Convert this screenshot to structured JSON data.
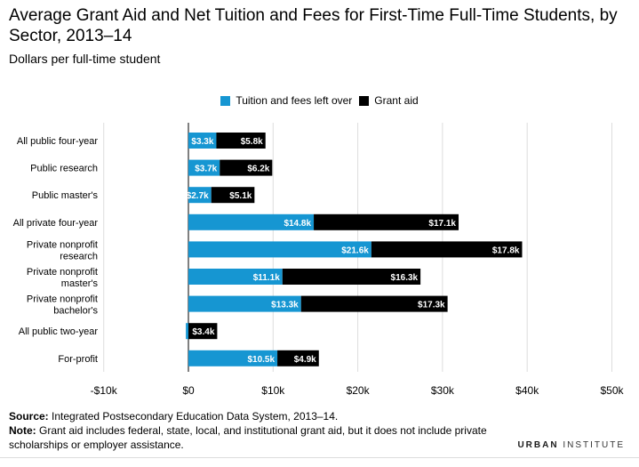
{
  "title": "Average Grant Aid and Net Tuition and Fees for First-Time Full-Time Students, by Sector, 2013–14",
  "subtitle": "Dollars per full-time student",
  "legend": {
    "tuition": "Tuition and fees left over",
    "grant": "Grant aid"
  },
  "colors": {
    "tuition": "#1696d2",
    "grant": "#000000",
    "grid": "#dddddd",
    "axis": "#000000"
  },
  "footer": {
    "source_label": "Source:",
    "source_text": " Integrated Postsecondary Education Data System, 2013–14.",
    "note_label": "Note:",
    "note_text": " Grant aid includes federal, state, local, and institutional grant aid, but it does not include private scholarships or employer assistance."
  },
  "brand": {
    "part1": "URBAN",
    "part2": " INSTITUTE"
  },
  "chart_data": {
    "type": "bar",
    "orientation": "horizontal",
    "stacked": true,
    "categories": [
      "All public four-year",
      "Public research",
      "Public master's",
      "All private four-year",
      "Private nonprofit research",
      "Private nonprofit master's",
      "Private nonprofit bachelor's",
      "All public two-year",
      "For-profit"
    ],
    "category_lines": [
      [
        "All public four-year"
      ],
      [
        "Public research"
      ],
      [
        "Public master's"
      ],
      [
        "All private four-year"
      ],
      [
        "Private nonprofit",
        "research"
      ],
      [
        "Private nonprofit",
        "master's"
      ],
      [
        "Private nonprofit",
        "bachelor's"
      ],
      [
        "All public two-year"
      ],
      [
        "For-profit"
      ]
    ],
    "series": [
      {
        "name": "Tuition and fees left over",
        "values": [
          3.3,
          3.7,
          2.7,
          14.8,
          21.6,
          11.1,
          13.3,
          -0.3,
          10.5
        ],
        "labels": [
          "$3.3k",
          "$3.7k",
          "$2.7k",
          "$14.8k",
          "$21.6k",
          "$11.1k",
          "$13.3k",
          "",
          "$10.5k"
        ]
      },
      {
        "name": "Grant aid",
        "values": [
          5.8,
          6.2,
          5.1,
          17.1,
          17.8,
          16.3,
          17.3,
          3.4,
          4.9
        ],
        "labels": [
          "$5.8k",
          "$6.2k",
          "$5.1k",
          "$17.1k",
          "$17.8k",
          "$16.3k",
          "$17.3k",
          "$3.4k",
          "$4.9k"
        ]
      }
    ],
    "xlim": [
      -10,
      50
    ],
    "xticks": [
      -10,
      0,
      10,
      20,
      30,
      40,
      50
    ],
    "xtick_labels": [
      "-$10k",
      "$0",
      "$10k",
      "$20k",
      "$30k",
      "$40k",
      "$50k"
    ],
    "grid": true,
    "legend_position": "top-center"
  }
}
